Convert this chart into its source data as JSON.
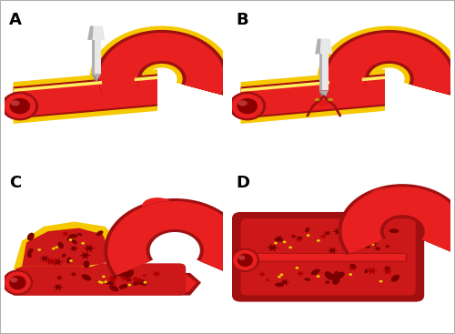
{
  "figure_width": 5.0,
  "figure_height": 3.67,
  "dpi": 100,
  "background_color": "#ffffff",
  "border_color": "#b0b0b0",
  "labels": [
    "A",
    "B",
    "C",
    "D"
  ],
  "label_fontsize": 13,
  "label_fontweight": "bold",
  "label_color": "#000000",
  "vessel_red": "#e82020",
  "vessel_red2": "#dd1515",
  "vessel_dark_red": "#a01010",
  "vessel_shadow": "#8b0000",
  "vessel_yellow": "#f5c800",
  "vessel_light_yellow": "#ffee60",
  "needle_light": "#e8e8e8",
  "needle_mid": "#b0b0b0",
  "needle_dark": "#888888",
  "hematoma_red": "#cc1818",
  "clot_dark": "#7a0000",
  "clot_mid": "#aa0000",
  "platelet_yellow": "#e8c800",
  "white": "#ffffff"
}
